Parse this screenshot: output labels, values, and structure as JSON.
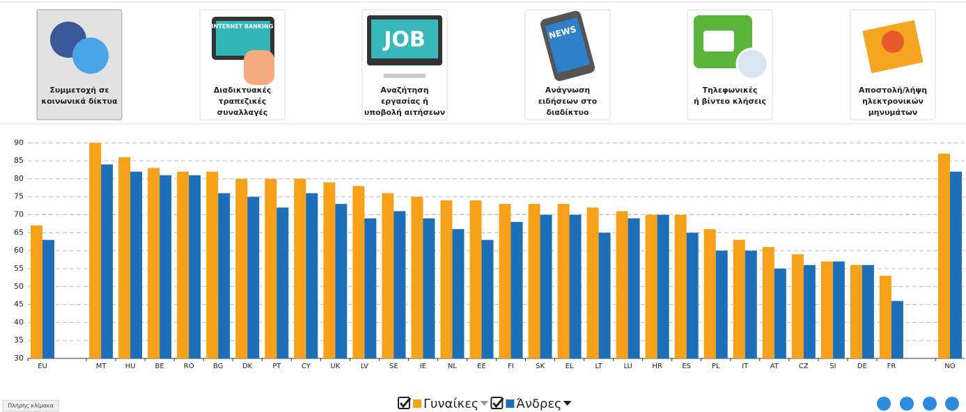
{
  "tabs": [
    {
      "lines": [
        "Συμμετοχή σε",
        "κοινωνικά δίκτυα"
      ],
      "selected": true
    },
    {
      "lines": [
        "Διαδικτυακές",
        "τραπεζικές",
        "συναλλαγές"
      ],
      "icon_text": "INTERNET BANKING"
    },
    {
      "lines": [
        "Αναζήτηση",
        "εργασίας ή",
        "υποβολή αιτήσεων"
      ],
      "icon_text": "JOB"
    },
    {
      "lines": [
        "Ανάγνωση",
        "ειδήσεων στο",
        "διαδίκτυο"
      ],
      "icon_text": "NEWS"
    },
    {
      "lines": [
        "Τηλεφωνικές",
        "ή βίντεο κλήσεις"
      ]
    },
    {
      "lines": [
        "Αποστολή/λήψη",
        "ηλεκτρονικών",
        "μηνυμάτων"
      ]
    }
  ],
  "chart_data": {
    "type": "bar",
    "categories": [
      "EU",
      null,
      "MT",
      "HU",
      "BE",
      "RO",
      "BG",
      "DK",
      "PT",
      "CY",
      "UK",
      "LV",
      "SE",
      "IE",
      "NL",
      "EE",
      "FI",
      "SK",
      "EL",
      "LT",
      "LU",
      "HR",
      "ES",
      "PL",
      "IT",
      "AT",
      "CZ",
      "SI",
      "DE",
      "FR",
      null,
      "NO"
    ],
    "series": [
      {
        "name": "Γυναίκες",
        "color": "#f7a11a",
        "values": [
          67,
          null,
          90,
          86,
          83,
          82,
          82,
          80,
          80,
          80,
          79,
          78,
          76,
          75,
          74,
          74,
          73,
          73,
          73,
          72,
          71,
          70,
          70,
          66,
          63,
          61,
          59,
          57,
          56,
          53,
          null,
          87
        ]
      },
      {
        "name": "Άνδρες",
        "color": "#1f6fb8",
        "values": [
          63,
          null,
          84,
          82,
          81,
          81,
          76,
          75,
          72,
          76,
          73,
          69,
          71,
          69,
          66,
          63,
          68,
          70,
          70,
          65,
          69,
          70,
          65,
          60,
          60,
          55,
          56,
          57,
          56,
          46,
          null,
          82
        ]
      }
    ],
    "ylim": [
      30,
      92
    ],
    "yticks": [
      30,
      35,
      40,
      45,
      50,
      55,
      60,
      65,
      70,
      75,
      80,
      85,
      90
    ],
    "grid": true
  },
  "scale_button": "Πλήρης κλίμακα"
}
